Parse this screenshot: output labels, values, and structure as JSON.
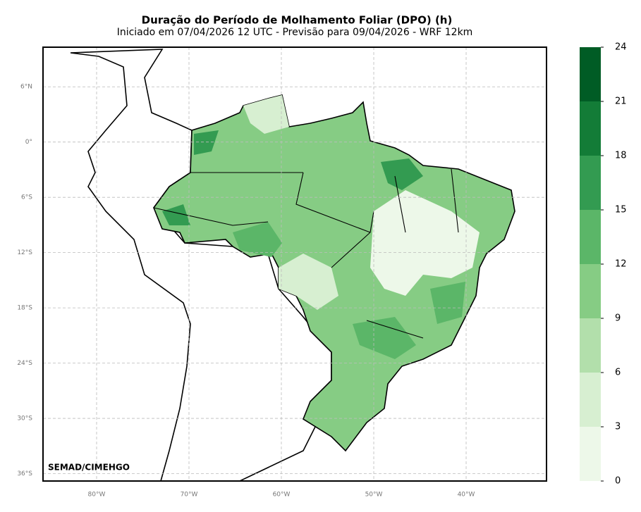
{
  "header": {
    "title": "Duração do Período de Molhamento Foliar (DPO) (h)",
    "subtitle": "Iniciado em 07/04/2026 12 UTC - Previsão para 09/04/2026 - WRF 12km"
  },
  "map": {
    "xlim": [
      -85.8,
      -31.3
    ],
    "ylim": [
      -36.8,
      10.3
    ],
    "xticks": [
      {
        "value": -80,
        "label": "80°W"
      },
      {
        "value": -70,
        "label": "70°W"
      },
      {
        "value": -60,
        "label": "60°W"
      },
      {
        "value": -50,
        "label": "50°W"
      },
      {
        "value": -40,
        "label": "40°W"
      }
    ],
    "yticks": [
      {
        "value": 6,
        "label": "6°N"
      },
      {
        "value": 0,
        "label": "0°"
      },
      {
        "value": -6,
        "label": "6°S"
      },
      {
        "value": -12,
        "label": "12°S"
      },
      {
        "value": -18,
        "label": "18°S"
      },
      {
        "value": -24,
        "label": "24°S"
      },
      {
        "value": -30,
        "label": "30°S"
      },
      {
        "value": -36,
        "label": "36°S"
      }
    ],
    "credit": "SEMAD/CIMEHGO"
  },
  "colorbar": {
    "ticks": [
      0,
      3,
      6,
      9,
      12,
      15,
      18,
      21,
      24
    ],
    "colors": [
      "#edf8e9",
      "#d7efd1",
      "#b2dfab",
      "#86cc84",
      "#5bb668",
      "#339b51",
      "#137c37",
      "#005c25"
    ]
  }
}
